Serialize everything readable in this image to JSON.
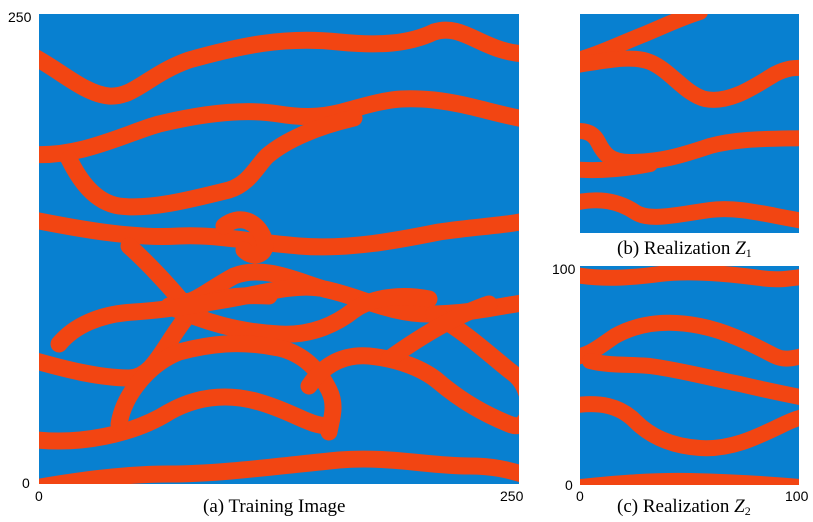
{
  "colors": {
    "background": "#0880d0",
    "channel": "#f24512"
  },
  "panels": {
    "training": {
      "caption": "(a) Training Image",
      "x_ticks": [
        "0",
        "250"
      ],
      "y_ticks": [
        "250",
        "0"
      ]
    },
    "realization_1": {
      "caption_prefix": "(b) Realization ",
      "caption_var": "Z",
      "caption_sub": "1"
    },
    "realization_2": {
      "caption_prefix": "(c) Realization ",
      "caption_var": "Z",
      "caption_sub": "2",
      "x_ticks": [
        "0",
        "100"
      ],
      "y_ticks": [
        "100",
        "0"
      ]
    }
  }
}
